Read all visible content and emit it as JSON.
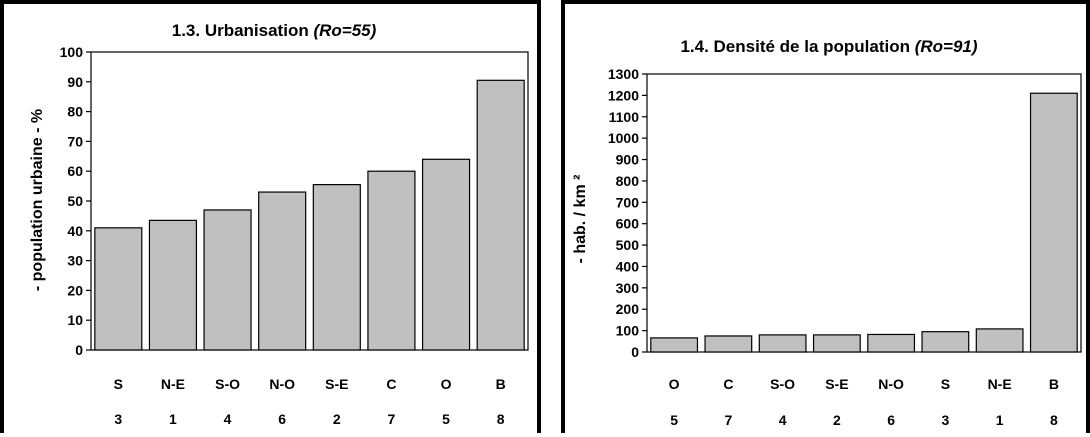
{
  "chart_data": [
    {
      "type": "bar",
      "title": "1.3. Urbanisation ",
      "title_suffix": "(Ro=55)",
      "ylabel": "- population urbaine - %",
      "xlabel": "",
      "categories": [
        "S",
        "N-E",
        "S-O",
        "N-O",
        "S-E",
        "C",
        "O",
        "B"
      ],
      "codes": [
        "3",
        "1",
        "4",
        "6",
        "2",
        "7",
        "5",
        "8"
      ],
      "values": [
        41,
        43.5,
        47,
        53,
        55.5,
        60,
        64,
        90.5
      ],
      "ylim": [
        0,
        100
      ],
      "yticks": [
        "0",
        "10",
        "20",
        "30",
        "40",
        "50",
        "60",
        "70",
        "80",
        "90",
        "100"
      ],
      "grid": false,
      "bar_color": "#c0c0c0"
    },
    {
      "type": "bar",
      "title": "1.4. Densité de la population ",
      "title_suffix": "(Ro=91)",
      "ylabel": "- hab. / km ²",
      "xlabel": "",
      "categories": [
        "O",
        "C",
        "S-O",
        "S-E",
        "N-O",
        "S",
        "N-E",
        "B"
      ],
      "codes": [
        "5",
        "7",
        "4",
        "2",
        "6",
        "3",
        "1",
        "8"
      ],
      "values": [
        66,
        75,
        80,
        80,
        82,
        95,
        108,
        1210
      ],
      "ylim": [
        0,
        1300
      ],
      "yticks": [
        "0",
        "100",
        "200",
        "300",
        "400",
        "500",
        "600",
        "700",
        "800",
        "900",
        "1000",
        "1100",
        "1200",
        "1300"
      ],
      "grid": false,
      "bar_color": "#c0c0c0"
    }
  ]
}
